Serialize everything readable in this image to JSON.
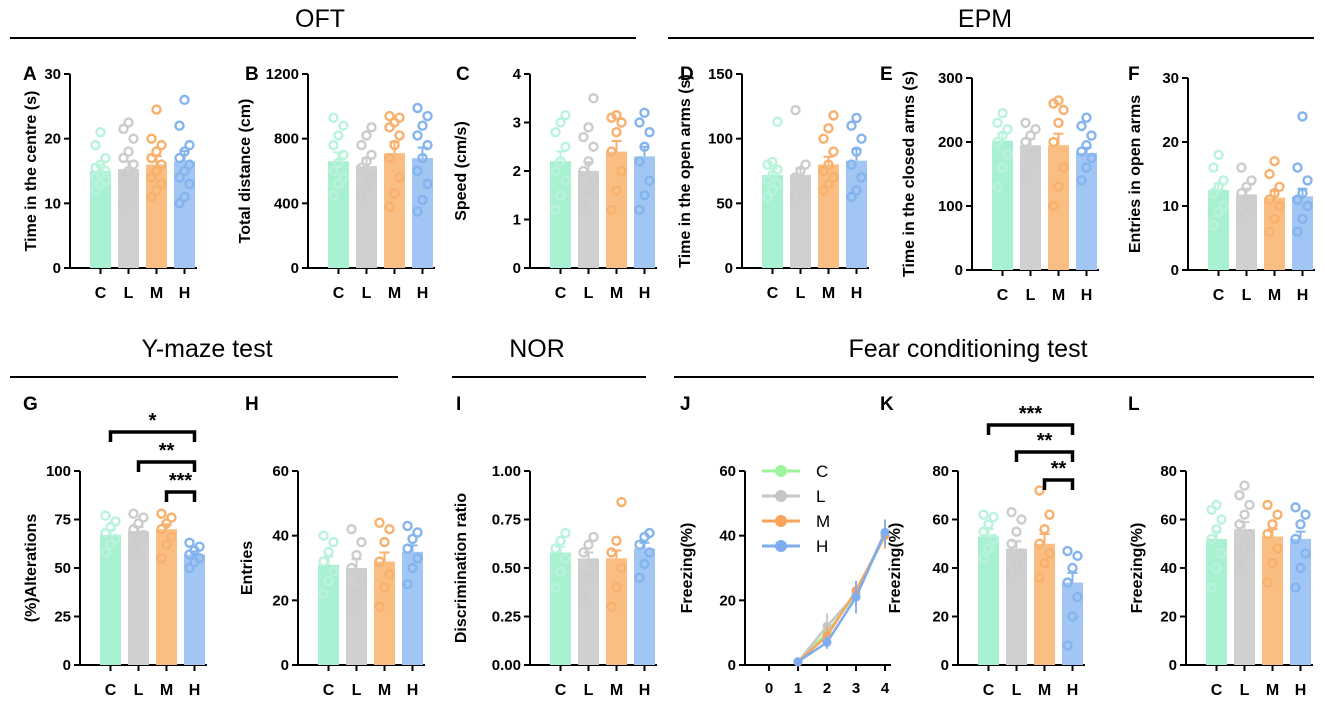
{
  "sections": [
    {
      "title": "OFT"
    },
    {
      "title": "EPM"
    },
    {
      "title": "Y-maze test"
    },
    {
      "title": "NOR"
    },
    {
      "title": "Fear conditioning test"
    }
  ],
  "groups": {
    "names": [
      "C",
      "L",
      "M",
      "H"
    ],
    "colors": [
      "#a8f0d2",
      "#cfcfcf",
      "#fbbe82",
      "#a2c6f3"
    ],
    "dot_colors": [
      "#b9f3dc",
      "#cccccc",
      "#f8b06c",
      "#84b4ee"
    ],
    "line_colors": [
      "#9cf59c",
      "#c6c6c6",
      "#f8a45a",
      "#7eacee"
    ]
  },
  "chart_data": [
    {
      "panel": "A",
      "type": "bar",
      "ylabel": "Time in the centre (s)",
      "ylim": [
        0,
        30
      ],
      "yticks": [
        "0",
        "10",
        "20",
        "30"
      ],
      "categories": [
        "C",
        "L",
        "M",
        "H"
      ],
      "values": [
        15,
        15.3,
        16,
        16.5
      ],
      "errors": [
        1.0,
        1.2,
        1.3,
        1.6
      ],
      "points": [
        [
          12,
          13,
          13.5,
          14,
          14.5,
          15,
          15.5,
          16,
          17,
          19,
          21
        ],
        [
          10,
          12,
          13,
          14,
          15,
          16,
          17,
          18,
          20,
          21.5,
          22.5
        ],
        [
          11,
          12,
          13,
          14,
          15,
          16,
          17,
          18,
          19,
          20,
          24.5
        ],
        [
          10,
          11,
          13,
          14,
          15,
          16,
          17,
          18,
          19,
          22,
          26
        ]
      ],
      "annotations": []
    },
    {
      "panel": "B",
      "type": "bar",
      "ylabel": "Total distance (cm)",
      "ylim": [
        0,
        1200
      ],
      "yticks": [
        "0",
        "400",
        "800",
        "1200"
      ],
      "categories": [
        "C",
        "L",
        "M",
        "H"
      ],
      "values": [
        660,
        630,
        710,
        680
      ],
      "errors": [
        55,
        50,
        70,
        65
      ],
      "points": [
        [
          450,
          520,
          560,
          600,
          650,
          700,
          760,
          820,
          880,
          930
        ],
        [
          450,
          500,
          560,
          620,
          660,
          700,
          760,
          820,
          870
        ],
        [
          380,
          460,
          560,
          680,
          760,
          820,
          870,
          900,
          930,
          940
        ],
        [
          350,
          420,
          520,
          600,
          680,
          760,
          820,
          880,
          940,
          990
        ]
      ],
      "annotations": []
    },
    {
      "panel": "C",
      "type": "bar",
      "ylabel": "Speed (cm/s)",
      "ylim": [
        0,
        4
      ],
      "yticks": [
        "0",
        "1",
        "2",
        "3",
        "4"
      ],
      "categories": [
        "C",
        "L",
        "M",
        "H"
      ],
      "values": [
        2.2,
        2.0,
        2.4,
        2.3
      ],
      "errors": [
        0.2,
        0.18,
        0.22,
        0.2
      ],
      "points": [
        [
          1.2,
          1.5,
          1.8,
          2.0,
          2.2,
          2.5,
          2.8,
          3.0,
          3.15
        ],
        [
          1.3,
          1.6,
          1.8,
          2.0,
          2.2,
          2.5,
          2.7,
          2.9,
          3.5
        ],
        [
          1.2,
          1.6,
          2.0,
          2.4,
          2.8,
          3.0,
          3.1,
          3.15
        ],
        [
          1.2,
          1.5,
          1.8,
          2.2,
          2.5,
          2.8,
          3.0,
          3.2
        ]
      ],
      "annotations": []
    },
    {
      "panel": "D",
      "type": "bar",
      "ylabel": "Time in the open arms (s)",
      "ylim": [
        0,
        150
      ],
      "yticks": [
        "0",
        "50",
        "100",
        "150"
      ],
      "categories": [
        "C",
        "L",
        "M",
        "H"
      ],
      "values": [
        72,
        72,
        80,
        83
      ],
      "errors": [
        5,
        5,
        6,
        9
      ],
      "points": [
        [
          55,
          60,
          65,
          68,
          72,
          76,
          80,
          82,
          113
        ],
        [
          55,
          60,
          65,
          70,
          75,
          80,
          122
        ],
        [
          60,
          65,
          70,
          75,
          80,
          90,
          100,
          108,
          118
        ],
        [
          55,
          60,
          70,
          80,
          90,
          100,
          110,
          116
        ]
      ],
      "annotations": []
    },
    {
      "panel": "E",
      "type": "bar",
      "ylabel": "Time in the closed arms (s)",
      "ylim": [
        0,
        300
      ],
      "yticks": [
        "0",
        "100",
        "200",
        "300"
      ],
      "categories": [
        "C",
        "L",
        "M",
        "H"
      ],
      "values": [
        202,
        195,
        195,
        183
      ],
      "errors": [
        12,
        10,
        18,
        8
      ],
      "points": [
        [
          130,
          160,
          180,
          200,
          210,
          220,
          230,
          245
        ],
        [
          150,
          170,
          185,
          200,
          210,
          220,
          230
        ],
        [
          100,
          130,
          160,
          200,
          230,
          250,
          260,
          265
        ],
        [
          140,
          160,
          175,
          185,
          195,
          210,
          225,
          238
        ]
      ],
      "annotations": []
    },
    {
      "panel": "F",
      "type": "bar",
      "ylabel": "Entries in open arms",
      "ylim": [
        0,
        30
      ],
      "yticks": [
        "0",
        "10",
        "20",
        "30"
      ],
      "categories": [
        "C",
        "L",
        "M",
        "H"
      ],
      "values": [
        12.5,
        11.8,
        11.3,
        11.5
      ],
      "errors": [
        1.0,
        0.9,
        1.1,
        1.2
      ],
      "points": [
        [
          7,
          9,
          10,
          12,
          13,
          14,
          16,
          18
        ],
        [
          8,
          10,
          11,
          12,
          13,
          14,
          16
        ],
        [
          6,
          8,
          10,
          11,
          12,
          13,
          15,
          17
        ],
        [
          6,
          8,
          10,
          11,
          12,
          14,
          16,
          24
        ]
      ],
      "annotations": []
    },
    {
      "panel": "G",
      "type": "bar",
      "ylabel": "(%)Alterations",
      "ylim": [
        0,
        100
      ],
      "yticks": [
        "0",
        "25",
        "50",
        "75",
        "100"
      ],
      "categories": [
        "C",
        "L",
        "M",
        "H"
      ],
      "values": [
        67,
        69,
        70,
        57
      ],
      "errors": [
        2.5,
        2.0,
        2.5,
        1.5
      ],
      "points": [
        [
          58,
          62,
          65,
          68,
          71,
          74,
          77
        ],
        [
          60,
          64,
          67,
          70,
          73,
          76,
          78
        ],
        [
          55,
          62,
          66,
          70,
          73,
          76,
          78
        ],
        [
          50,
          53,
          55,
          57,
          59,
          61,
          63
        ]
      ],
      "annotations": [
        {
          "from": 0,
          "to": 3,
          "label": "*"
        },
        {
          "from": 1,
          "to": 3,
          "label": "**"
        },
        {
          "from": 2,
          "to": 3,
          "label": "***"
        }
      ]
    },
    {
      "panel": "H",
      "type": "bar",
      "ylabel": "Entries",
      "ylim": [
        0,
        60
      ],
      "yticks": [
        "0",
        "20",
        "40",
        "60"
      ],
      "categories": [
        "C",
        "L",
        "M",
        "H"
      ],
      "values": [
        31,
        30,
        32,
        35
      ],
      "errors": [
        2.5,
        2.7,
        2.8,
        2.0
      ],
      "points": [
        [
          22,
          26,
          29,
          32,
          35,
          38,
          40
        ],
        [
          18,
          22,
          26,
          30,
          34,
          38,
          42
        ],
        [
          18,
          24,
          28,
          32,
          38,
          42,
          44
        ],
        [
          25,
          30,
          33,
          36,
          39,
          41,
          43
        ]
      ],
      "annotations": []
    },
    {
      "panel": "I",
      "type": "bar",
      "ylabel": "Discrimination ratio",
      "ylim": [
        0,
        1
      ],
      "yticks": [
        "0.00",
        "0.25",
        "0.50",
        "0.75",
        "1.00"
      ],
      "categories": [
        "C",
        "L",
        "M",
        "H"
      ],
      "values": [
        0.58,
        0.55,
        0.55,
        0.6
      ],
      "errors": [
        0.03,
        0.03,
        0.04,
        0.03
      ],
      "points": [
        [
          0.4,
          0.48,
          0.55,
          0.6,
          0.64,
          0.68
        ],
        [
          0.35,
          0.45,
          0.52,
          0.58,
          0.62,
          0.66
        ],
        [
          0.3,
          0.4,
          0.5,
          0.58,
          0.64,
          0.84
        ],
        [
          0.45,
          0.52,
          0.58,
          0.62,
          0.66,
          0.68
        ]
      ],
      "annotations": []
    },
    {
      "panel": "J",
      "type": "line",
      "ylabel": "Freezing(%)",
      "ylim": [
        0,
        60
      ],
      "yticks": [
        "0",
        "20",
        "40",
        "60"
      ],
      "xlim": [
        0,
        4
      ],
      "xticks": [
        "0",
        "1",
        "2",
        "3",
        "4"
      ],
      "x": [
        1,
        2,
        3,
        4
      ],
      "series": [
        {
          "name": "C",
          "values": [
            1,
            10,
            22,
            40
          ],
          "errors": [
            0.5,
            3,
            3,
            4
          ]
        },
        {
          "name": "L",
          "values": [
            1,
            12,
            22,
            41
          ],
          "errors": [
            0.5,
            4,
            4,
            4
          ]
        },
        {
          "name": "M",
          "values": [
            1,
            9,
            23,
            40
          ],
          "errors": [
            0.5,
            3,
            3,
            4
          ]
        },
        {
          "name": "H",
          "values": [
            1,
            7,
            21,
            41
          ],
          "errors": [
            0.5,
            2,
            5,
            4
          ]
        }
      ],
      "legend_location": "top-left"
    },
    {
      "panel": "K",
      "type": "bar",
      "ylabel": "Freezing(%)",
      "ylim": [
        0,
        80
      ],
      "yticks": [
        "0",
        "20",
        "40",
        "60",
        "80"
      ],
      "categories": [
        "C",
        "L",
        "M",
        "H"
      ],
      "values": [
        53,
        48,
        50,
        34
      ],
      "errors": [
        3,
        3,
        4,
        4
      ],
      "points": [
        [
          44,
          48,
          52,
          55,
          58,
          61,
          62
        ],
        [
          38,
          42,
          46,
          50,
          55,
          60,
          63
        ],
        [
          36,
          42,
          46,
          50,
          56,
          62,
          72
        ],
        [
          8,
          20,
          28,
          34,
          40,
          45,
          47
        ]
      ],
      "annotations": [
        {
          "from": 0,
          "to": 3,
          "label": "***"
        },
        {
          "from": 1,
          "to": 3,
          "label": "**"
        },
        {
          "from": 2,
          "to": 3,
          "label": "**"
        }
      ]
    },
    {
      "panel": "L",
      "type": "bar",
      "ylabel": "Freezing(%)",
      "ylim": [
        0,
        80
      ],
      "yticks": [
        "0",
        "20",
        "40",
        "60",
        "80"
      ],
      "categories": [
        "C",
        "L",
        "M",
        "H"
      ],
      "values": [
        52,
        56,
        53,
        52
      ],
      "errors": [
        3,
        3,
        3,
        3
      ],
      "points": [
        [
          32,
          40,
          46,
          52,
          56,
          60,
          64,
          66
        ],
        [
          42,
          48,
          54,
          58,
          62,
          66,
          70,
          74
        ],
        [
          34,
          42,
          48,
          54,
          58,
          62,
          66
        ],
        [
          32,
          40,
          46,
          52,
          58,
          62,
          65
        ]
      ],
      "annotations": []
    }
  ]
}
